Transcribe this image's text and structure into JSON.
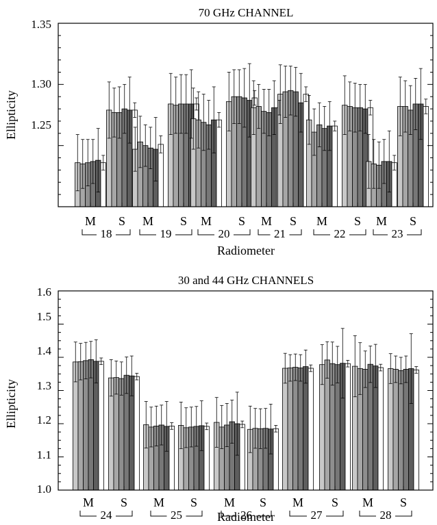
{
  "chart_data": [
    {
      "type": "bar",
      "title": "70 GHz CHANNEL",
      "xlabel": "Radiometer",
      "ylabel": "Ellipticity",
      "ylim": [
        1.2,
        1.35
      ],
      "yticks": [
        1.25,
        1.3,
        1.35
      ],
      "ytick_labels": [
        "1.25",
        "1.30",
        "1.35"
      ],
      "grid": false,
      "group_labels": [
        "M",
        "S",
        "M",
        "S",
        "M",
        "S",
        "M",
        "S",
        "M",
        "S",
        "M",
        "S"
      ],
      "radiometers": [
        "18",
        "19",
        "20",
        "21",
        "22",
        "23"
      ],
      "bar_shades": [
        "#c8c8c8",
        "#a6a6a6",
        "#8e8e8e",
        "#777777",
        "#5e5e5e",
        "#ffffff"
      ],
      "groups": [
        {
          "values": [
            1.236,
            1.235,
            1.236,
            1.237,
            1.238,
            1.236
          ],
          "err_up": [
            0.023,
            0.02,
            0.019,
            0.018,
            0.026,
            0.006
          ],
          "err_dn": [
            0.023,
            0.02,
            0.019,
            0.018,
            0.026,
            0.006
          ]
        },
        {
          "values": [
            1.279,
            1.277,
            1.277,
            1.28,
            1.279,
            1.279
          ],
          "err_up": [
            0.023,
            0.02,
            0.021,
            0.02,
            0.027,
            0.006
          ],
          "err_dn": [
            0.023,
            0.02,
            0.021,
            0.02,
            0.027,
            0.006
          ]
        },
        {
          "values": [
            1.247,
            1.253,
            1.25,
            1.248,
            1.247,
            1.251
          ],
          "err_up": [
            0.018,
            0.021,
            0.017,
            0.017,
            0.026,
            0.007
          ],
          "err_dn": [
            0.018,
            0.021,
            0.017,
            0.017,
            0.026,
            0.007
          ]
        },
        {
          "values": [
            1.284,
            1.283,
            1.284,
            1.284,
            1.284,
            1.284
          ],
          "err_up": [
            0.025,
            0.023,
            0.024,
            0.024,
            0.028,
            0.005
          ],
          "err_dn": [
            0.025,
            0.023,
            0.024,
            0.024,
            0.028,
            0.005
          ]
        },
        {
          "values": [
            1.272,
            1.271,
            1.269,
            1.267,
            1.271,
            1.271
          ],
          "err_up": [
            0.025,
            0.023,
            0.023,
            0.02,
            0.027,
            0.006
          ],
          "err_dn": [
            0.025,
            0.023,
            0.023,
            0.02,
            0.027,
            0.006
          ]
        },
        {
          "values": [
            1.286,
            1.29,
            1.29,
            1.289,
            1.287,
            1.289
          ],
          "err_up": [
            0.024,
            0.022,
            0.022,
            0.024,
            0.03,
            0.006
          ],
          "err_dn": [
            0.024,
            0.022,
            0.022,
            0.024,
            0.03,
            0.006
          ]
        },
        {
          "values": [
            1.281,
            1.282,
            1.278,
            1.277,
            1.281,
            1.281
          ],
          "err_up": [
            0.022,
            0.018,
            0.018,
            0.019,
            0.022,
            0.006
          ],
          "err_dn": [
            0.022,
            0.018,
            0.018,
            0.019,
            0.022,
            0.006
          ]
        },
        {
          "values": [
            1.292,
            1.294,
            1.295,
            1.294,
            1.285,
            1.292
          ],
          "err_up": [
            0.024,
            0.021,
            0.02,
            0.02,
            0.024,
            0.006
          ],
          "err_dn": [
            0.024,
            0.021,
            0.02,
            0.02,
            0.024,
            0.006
          ]
        },
        {
          "values": [
            1.271,
            1.261,
            1.267,
            1.264,
            1.266,
            1.266
          ],
          "err_up": [
            0.02,
            0.019,
            0.018,
            0.018,
            0.02,
            0.004
          ],
          "err_dn": [
            0.02,
            0.019,
            0.018,
            0.018,
            0.02,
            0.004
          ]
        },
        {
          "values": [
            1.283,
            1.282,
            1.281,
            1.281,
            1.28,
            1.281
          ],
          "err_up": [
            0.024,
            0.02,
            0.02,
            0.019,
            0.02,
            0.006
          ],
          "err_dn": [
            0.024,
            0.02,
            0.02,
            0.019,
            0.02,
            0.006
          ]
        },
        {
          "values": [
            1.237,
            1.235,
            1.234,
            1.237,
            1.237,
            1.236
          ],
          "err_up": [
            0.022,
            0.02,
            0.019,
            0.018,
            0.025,
            0.006
          ],
          "err_dn": [
            0.022,
            0.02,
            0.019,
            0.018,
            0.025,
            0.006
          ]
        },
        {
          "values": [
            1.282,
            1.282,
            1.279,
            1.284,
            1.284,
            1.282
          ],
          "err_up": [
            0.024,
            0.021,
            0.02,
            0.021,
            0.029,
            0.006
          ],
          "err_dn": [
            0.024,
            0.021,
            0.02,
            0.021,
            0.029,
            0.006
          ]
        }
      ]
    },
    {
      "type": "bar",
      "title": "30 and 44 GHz CHANNELS",
      "xlabel": "Radiometer",
      "ylabel": "Ellipticity",
      "ylim": [
        1.0,
        1.6
      ],
      "yticks": [
        1.0,
        1.1,
        1.2,
        1.3,
        1.4,
        1.5,
        1.6
      ],
      "ytick_labels": [
        "1.0",
        "1.1",
        "1.2",
        "1.3",
        "1.4",
        "1.5",
        "1.6"
      ],
      "grid": false,
      "group_labels": [
        "M",
        "S",
        "M",
        "S",
        "M",
        "S",
        "M",
        "S",
        "M",
        "S"
      ],
      "radiometers": [
        "24",
        "25",
        "26",
        "27",
        "28"
      ],
      "bar_shades": [
        "#c8c8c8",
        "#a6a6a6",
        "#8e8e8e",
        "#777777",
        "#5e5e5e",
        "#ffffff"
      ],
      "groups": [
        {
          "values": [
            1.386,
            1.387,
            1.39,
            1.393,
            1.388,
            1.388
          ],
          "err_up": [
            0.06,
            0.055,
            0.055,
            0.055,
            0.065,
            0.01
          ],
          "err_dn": [
            0.06,
            0.055,
            0.055,
            0.055,
            0.065,
            0.01
          ]
        },
        {
          "values": [
            1.338,
            1.339,
            1.336,
            1.346,
            1.344,
            1.342
          ],
          "err_up": [
            0.055,
            0.05,
            0.05,
            0.055,
            0.06,
            0.01
          ],
          "err_dn": [
            0.055,
            0.05,
            0.05,
            0.055,
            0.06,
            0.01
          ]
        },
        {
          "values": [
            1.197,
            1.19,
            1.193,
            1.196,
            1.192,
            1.193
          ],
          "err_up": [
            0.07,
            0.06,
            0.06,
            0.06,
            0.075,
            0.01
          ],
          "err_dn": [
            0.07,
            0.06,
            0.06,
            0.06,
            0.075,
            0.01
          ]
        },
        {
          "values": [
            1.195,
            1.188,
            1.19,
            1.192,
            1.194,
            1.192
          ],
          "err_up": [
            0.07,
            0.06,
            0.06,
            0.06,
            0.075,
            0.01
          ],
          "err_dn": [
            0.07,
            0.06,
            0.06,
            0.06,
            0.075,
            0.01
          ]
        },
        {
          "values": [
            1.204,
            1.19,
            1.196,
            1.206,
            1.2,
            1.198
          ],
          "err_up": [
            0.075,
            0.065,
            0.065,
            0.065,
            0.095,
            0.01
          ],
          "err_dn": [
            0.075,
            0.065,
            0.065,
            0.065,
            0.095,
            0.01
          ]
        },
        {
          "values": [
            1.183,
            1.186,
            1.185,
            1.186,
            1.184,
            1.185
          ],
          "err_up": [
            0.07,
            0.06,
            0.06,
            0.06,
            0.075,
            0.01
          ],
          "err_dn": [
            0.07,
            0.06,
            0.06,
            0.06,
            0.075,
            0.01
          ]
        },
        {
          "values": [
            1.367,
            1.368,
            1.37,
            1.368,
            1.372,
            1.367
          ],
          "err_up": [
            0.045,
            0.04,
            0.04,
            0.04,
            0.05,
            0.01
          ],
          "err_dn": [
            0.045,
            0.04,
            0.04,
            0.04,
            0.05,
            0.01
          ]
        },
        {
          "values": [
            1.378,
            1.392,
            1.381,
            1.378,
            1.382,
            1.381
          ],
          "err_up": [
            0.06,
            0.055,
            0.065,
            0.055,
            0.105,
            0.01
          ],
          "err_dn": [
            0.06,
            0.055,
            0.065,
            0.055,
            0.105,
            0.01
          ]
        },
        {
          "values": [
            1.373,
            1.366,
            1.364,
            1.379,
            1.374,
            1.369
          ],
          "err_up": [
            0.092,
            0.078,
            0.055,
            0.055,
            0.065,
            0.01
          ],
          "err_dn": [
            0.092,
            0.078,
            0.055,
            0.055,
            0.065,
            0.01
          ]
        },
        {
          "values": [
            1.366,
            1.364,
            1.36,
            1.364,
            1.366,
            1.362
          ],
          "err_up": [
            0.045,
            0.04,
            0.04,
            0.04,
            0.105,
            0.01
          ],
          "err_dn": [
            0.045,
            0.04,
            0.04,
            0.04,
            0.105,
            0.01
          ]
        }
      ]
    }
  ]
}
